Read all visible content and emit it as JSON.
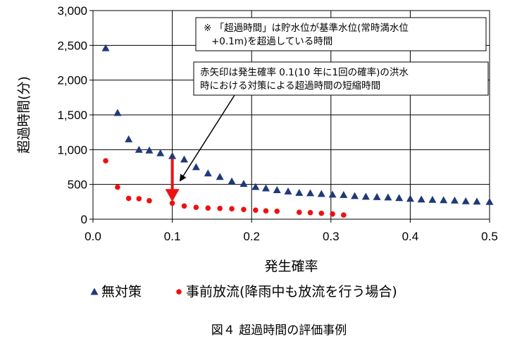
{
  "chart_data": {
    "type": "scatter",
    "xlabel": "発生確率",
    "ylabel": "超過時間(分)",
    "xlim": [
      0,
      0.5
    ],
    "ylim": [
      0,
      3000
    ],
    "x_ticks": [
      "0.0",
      "0.1",
      "0.2",
      "0.3",
      "0.4",
      "0.5"
    ],
    "y_ticks": [
      "0",
      "500",
      "1,000",
      "1,500",
      "2,000",
      "2,500",
      "3,000"
    ],
    "grid": true,
    "series": [
      {
        "name": "無対策",
        "marker": "triangle",
        "color": "#1f3a78",
        "x": [
          0.016,
          0.031,
          0.045,
          0.058,
          0.071,
          0.085,
          0.1,
          0.115,
          0.13,
          0.145,
          0.16,
          0.175,
          0.19,
          0.205,
          0.218,
          0.232,
          0.246,
          0.26,
          0.274,
          0.288,
          0.302,
          0.316,
          0.33,
          0.344,
          0.358,
          0.372,
          0.386,
          0.4,
          0.414,
          0.428,
          0.442,
          0.456,
          0.47,
          0.484,
          0.5
        ],
        "y": [
          2460,
          1530,
          1150,
          1000,
          990,
          950,
          910,
          860,
          750,
          660,
          610,
          545,
          510,
          465,
          445,
          420,
          400,
          380,
          375,
          365,
          355,
          350,
          335,
          325,
          320,
          315,
          305,
          295,
          285,
          280,
          275,
          270,
          260,
          255,
          250
        ]
      },
      {
        "name": "事前放流(降雨中も放流を行う場合)",
        "marker": "circle",
        "color": "#ee1111",
        "x": [
          0.016,
          0.031,
          0.045,
          0.058,
          0.071,
          0.1,
          0.115,
          0.13,
          0.145,
          0.16,
          0.175,
          0.19,
          0.205,
          0.218,
          0.232,
          0.26,
          0.274,
          0.288,
          0.302,
          0.316
        ],
        "y": [
          840,
          460,
          300,
          295,
          265,
          230,
          190,
          170,
          160,
          155,
          150,
          140,
          130,
          120,
          115,
          100,
          95,
          85,
          75,
          60
        ]
      }
    ],
    "annotations": [
      {
        "lines": [
          "※ 「超過時間」は貯水位が基準水位(常時満水位",
          "+0.1m)を超過している時間"
        ]
      },
      {
        "lines": [
          "赤矢印は発生確率 0.1(10 年に1回の確率)の洪水",
          "時における対策による超過時間の短縮時間"
        ]
      }
    ],
    "arrow": {
      "x": 0.1,
      "from_y": 910,
      "to_y": 230,
      "color": "#ee1111"
    },
    "legend_placement": "bottom",
    "caption": "図４ 超過時間の評価事例"
  }
}
